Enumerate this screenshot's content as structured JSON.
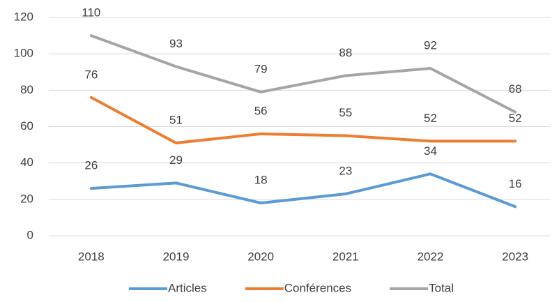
{
  "chart_data": {
    "type": "line",
    "categories": [
      "2018",
      "2019",
      "2020",
      "2021",
      "2022",
      "2023"
    ],
    "series": [
      {
        "name": "Articles",
        "color": "#5b9bd5",
        "values": [
          26,
          29,
          18,
          23,
          34,
          16
        ]
      },
      {
        "name": "Conférences",
        "color": "#ed7d31",
        "values": [
          76,
          51,
          56,
          55,
          52,
          52
        ]
      },
      {
        "name": "Total",
        "color": "#a5a5a5",
        "values": [
          110,
          93,
          79,
          88,
          92,
          68
        ]
      }
    ],
    "ylim": [
      0,
      120
    ],
    "yticks": [
      0,
      20,
      40,
      60,
      80,
      100,
      120
    ],
    "grid": true,
    "legend": "bottom"
  }
}
